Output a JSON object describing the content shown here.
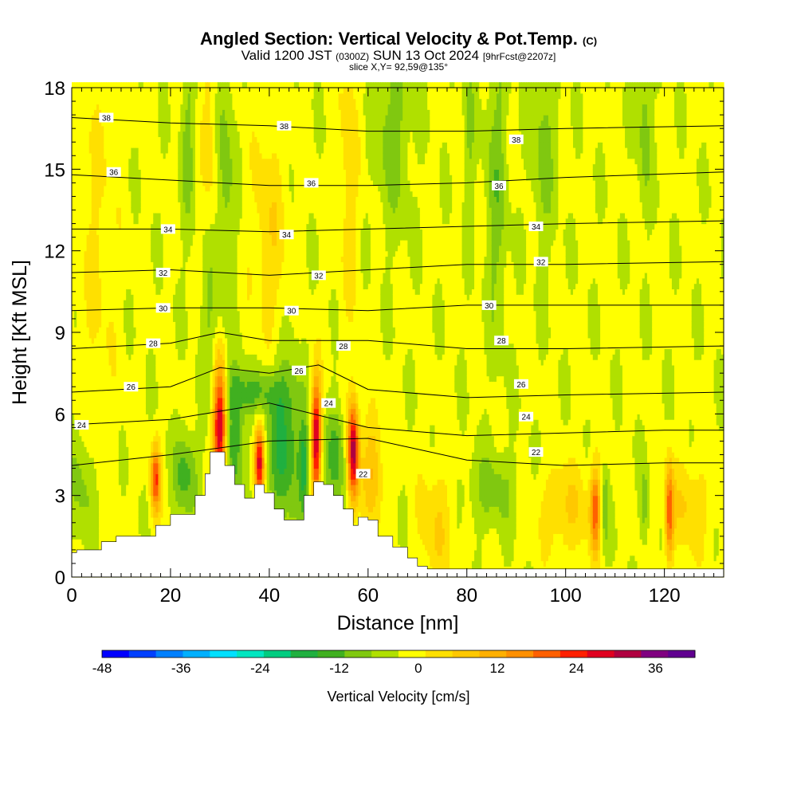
{
  "header": {
    "title": "Angled Section: Vertical Velocity & Pot.Temp.",
    "title_mark": "(C)",
    "valid_prefix": "Valid 1200 JST",
    "valid_utc": "(0300Z)",
    "valid_date": "SUN 13 Oct 2024",
    "forecast": "[9hrFcst@2207z]",
    "slice": "slice X,Y= 92,59@135°"
  },
  "chart_data": {
    "type": "heatmap",
    "xlabel": "Distance [nm]",
    "ylabel": "Height [Kft MSL]",
    "xlim": [
      0,
      132
    ],
    "ylim": [
      0,
      18
    ],
    "x_ticks": [
      0,
      20,
      40,
      60,
      80,
      100,
      120
    ],
    "y_ticks": [
      0,
      3,
      6,
      9,
      12,
      15,
      18
    ],
    "terrain_kft": [
      [
        0,
        0.9
      ],
      [
        1,
        1
      ],
      [
        6,
        1.3
      ],
      [
        9,
        1.5
      ],
      [
        15,
        1.5
      ],
      [
        17,
        1.9
      ],
      [
        20,
        2.3
      ],
      [
        25,
        3
      ],
      [
        27,
        3.8
      ],
      [
        28,
        4.6
      ],
      [
        30,
        4.6
      ],
      [
        31,
        4.1
      ],
      [
        33,
        3.4
      ],
      [
        35,
        2.9
      ],
      [
        37,
        3.4
      ],
      [
        39,
        3.1
      ],
      [
        41,
        2.5
      ],
      [
        43,
        2.1
      ],
      [
        45,
        2.1
      ],
      [
        47,
        3
      ],
      [
        49,
        3.5
      ],
      [
        51,
        3.4
      ],
      [
        53,
        3
      ],
      [
        55,
        2.5
      ],
      [
        57,
        1.9
      ],
      [
        58,
        2.2
      ],
      [
        60,
        2.1
      ],
      [
        62,
        1.5
      ],
      [
        65,
        1.1
      ],
      [
        68,
        0.7
      ],
      [
        70,
        0.4
      ],
      [
        72,
        0.3
      ],
      [
        132,
        0.3
      ]
    ],
    "theta_levels_c": [
      22,
      24,
      26,
      28,
      30,
      32,
      34,
      36,
      38
    ],
    "theta_isolines": [
      {
        "level": 22,
        "x": [
          0,
          20,
          40,
          60,
          80,
          100,
          120,
          132
        ],
        "y": [
          4.1,
          4.5,
          5.0,
          5.1,
          4.3,
          4.1,
          4.2,
          4.2
        ]
      },
      {
        "level": 24,
        "x": [
          0,
          20,
          40,
          60,
          80,
          100,
          120,
          132
        ],
        "y": [
          5.6,
          5.8,
          6.4,
          5.5,
          5.2,
          5.3,
          5.4,
          5.4
        ]
      },
      {
        "level": 26,
        "x": [
          0,
          20,
          30,
          40,
          50,
          60,
          80,
          100,
          132
        ],
        "y": [
          6.8,
          7.0,
          7.7,
          7.5,
          7.8,
          6.9,
          6.6,
          6.7,
          6.8
        ]
      },
      {
        "level": 28,
        "x": [
          0,
          20,
          30,
          40,
          60,
          80,
          100,
          132
        ],
        "y": [
          8.4,
          8.6,
          9.0,
          8.7,
          8.7,
          8.4,
          8.4,
          8.5
        ]
      },
      {
        "level": 30,
        "x": [
          0,
          20,
          40,
          60,
          80,
          100,
          132
        ],
        "y": [
          9.8,
          9.9,
          9.9,
          9.8,
          10.0,
          10.0,
          10.0
        ]
      },
      {
        "level": 32,
        "x": [
          0,
          20,
          40,
          60,
          80,
          100,
          132
        ],
        "y": [
          11.2,
          11.3,
          11.1,
          11.3,
          11.5,
          11.5,
          11.6
        ]
      },
      {
        "level": 34,
        "x": [
          0,
          20,
          40,
          60,
          80,
          100,
          132
        ],
        "y": [
          12.8,
          12.8,
          12.7,
          12.8,
          12.9,
          13.0,
          13.1
        ]
      },
      {
        "level": 36,
        "x": [
          0,
          20,
          40,
          60,
          80,
          100,
          132
        ],
        "y": [
          14.8,
          14.6,
          14.4,
          14.4,
          14.5,
          14.7,
          14.9
        ]
      },
      {
        "level": 38,
        "x": [
          0,
          20,
          40,
          60,
          80,
          100,
          132
        ],
        "y": [
          16.9,
          16.7,
          16.6,
          16.4,
          16.4,
          16.5,
          16.6
        ]
      }
    ],
    "theta_labels": [
      {
        "text": "38",
        "x": 7,
        "y": 16.9
      },
      {
        "text": "38",
        "x": 43,
        "y": 16.6
      },
      {
        "text": "38",
        "x": 90,
        "y": 16.1
      },
      {
        "text": "36",
        "x": 8.5,
        "y": 14.9
      },
      {
        "text": "36",
        "x": 48.5,
        "y": 14.5
      },
      {
        "text": "36",
        "x": 86.5,
        "y": 14.4
      },
      {
        "text": "34",
        "x": 19.5,
        "y": 12.8
      },
      {
        "text": "34",
        "x": 43.5,
        "y": 12.6
      },
      {
        "text": "34",
        "x": 94,
        "y": 12.9
      },
      {
        "text": "32",
        "x": 18.5,
        "y": 11.2
      },
      {
        "text": "32",
        "x": 50,
        "y": 11.1
      },
      {
        "text": "32",
        "x": 95,
        "y": 11.6
      },
      {
        "text": "30",
        "x": 18.5,
        "y": 9.9
      },
      {
        "text": "30",
        "x": 44.5,
        "y": 9.8
      },
      {
        "text": "30",
        "x": 84.5,
        "y": 10.0
      },
      {
        "text": "28",
        "x": 16.5,
        "y": 8.6
      },
      {
        "text": "28",
        "x": 55,
        "y": 8.5
      },
      {
        "text": "28",
        "x": 87,
        "y": 8.7
      },
      {
        "text": "26",
        "x": 12,
        "y": 7.0
      },
      {
        "text": "26",
        "x": 46,
        "y": 7.6
      },
      {
        "text": "26",
        "x": 91,
        "y": 7.1
      },
      {
        "text": "24",
        "x": 2,
        "y": 5.6
      },
      {
        "text": "24",
        "x": 52,
        "y": 6.4
      },
      {
        "text": "24",
        "x": 92,
        "y": 5.9
      },
      {
        "text": "22",
        "x": 94,
        "y": 4.6
      },
      {
        "text": "22",
        "x": 59,
        "y": 3.8
      }
    ],
    "colorbar": {
      "label": "Vertical Velocity [cm/s]",
      "tick_labels": [
        "-48",
        "-36",
        "-24",
        "-12",
        "0",
        "12",
        "24",
        "36"
      ],
      "tick_values": [
        -48,
        -36,
        -24,
        -12,
        0,
        12,
        24,
        36
      ],
      "min": -48,
      "max": 42,
      "step": 4.5,
      "colors": [
        "#0000ff",
        "#0040ff",
        "#0080ff",
        "#00b0ff",
        "#00e0ff",
        "#00e6c0",
        "#00cc80",
        "#20b040",
        "#40b020",
        "#80c810",
        "#b0e000",
        "#ffff00",
        "#ffe000",
        "#ffc800",
        "#ffb000",
        "#ff9000",
        "#ff6000",
        "#ff2000",
        "#e00020",
        "#b00040",
        "#800080",
        "#600090"
      ]
    },
    "velocity_features": [
      {
        "x": 30,
        "y": 5.6,
        "sx": 1.0,
        "sy": 1.6,
        "v": 38
      },
      {
        "x": 38,
        "y": 4.3,
        "sx": 0.7,
        "sy": 1.0,
        "v": 34
      },
      {
        "x": 49.5,
        "y": 5.2,
        "sx": 0.7,
        "sy": 1.5,
        "v": 36
      },
      {
        "x": 57,
        "y": 4.6,
        "sx": 0.8,
        "sy": 1.3,
        "v": 38
      },
      {
        "x": 17,
        "y": 3.6,
        "sx": 0.7,
        "sy": 0.9,
        "v": 26
      },
      {
        "x": 106,
        "y": 2.5,
        "sx": 0.7,
        "sy": 1.1,
        "v": 22
      },
      {
        "x": 121,
        "y": 2.4,
        "sx": 0.6,
        "sy": 1.2,
        "v": 24
      },
      {
        "x": 33,
        "y": 5.2,
        "sx": 1.4,
        "sy": 1.7,
        "v": -14
      },
      {
        "x": 43,
        "y": 5.0,
        "sx": 2.5,
        "sy": 2.0,
        "v": -16
      },
      {
        "x": 47,
        "y": 4.0,
        "sx": 0.7,
        "sy": 1.2,
        "v": -14
      },
      {
        "x": 53.5,
        "y": 4.5,
        "sx": 1.5,
        "sy": 1.3,
        "v": -12
      },
      {
        "x": 23,
        "y": 3.8,
        "sx": 1.7,
        "sy": 1.1,
        "v": -12
      },
      {
        "x": 37,
        "y": 6.8,
        "sx": 4,
        "sy": 0.6,
        "v": -10
      },
      {
        "x": 2,
        "y": 3.3,
        "sx": 2,
        "sy": 1.6,
        "v": -7
      },
      {
        "x": 108,
        "y": 2.6,
        "sx": 0.5,
        "sy": 1.0,
        "v": -10
      },
      {
        "x": 116,
        "y": 2.6,
        "sx": 0.6,
        "sy": 1.0,
        "v": -8
      },
      {
        "x": 85,
        "y": 3.2,
        "sx": 4,
        "sy": 1.0,
        "v": -7
      },
      {
        "x": 28,
        "y": 9.5,
        "sx": 1.2,
        "sy": 2.5,
        "v": -7
      },
      {
        "x": 31,
        "y": 14.5,
        "sx": 1.3,
        "sy": 3.5,
        "v": -8
      },
      {
        "x": 23.5,
        "y": 16.0,
        "sx": 1.0,
        "sy": 2.5,
        "v": -7
      },
      {
        "x": 65,
        "y": 16.5,
        "sx": 2.5,
        "sy": 2.5,
        "v": -8
      },
      {
        "x": 86,
        "y": 14.5,
        "sx": 1.5,
        "sy": 4.0,
        "v": -8
      },
      {
        "x": 95.5,
        "y": 16.0,
        "sx": 1.8,
        "sy": 2.8,
        "v": -7
      },
      {
        "x": 116,
        "y": 16.8,
        "sx": 1.0,
        "sy": 2.2,
        "v": -8
      },
      {
        "x": 80.5,
        "y": 16.5,
        "sx": 0.8,
        "sy": 2.5,
        "v": -6
      },
      {
        "x": 40,
        "y": 12.5,
        "sx": 2.5,
        "sy": 3,
        "v": 7
      },
      {
        "x": 56,
        "y": 15.0,
        "sx": 1.5,
        "sy": 4,
        "v": 6
      },
      {
        "x": 5,
        "y": 12.0,
        "sx": 3,
        "sy": 6,
        "v": 4
      },
      {
        "x": 28,
        "y": 16.0,
        "sx": 1.2,
        "sy": 3.5,
        "v": 6
      },
      {
        "x": 61,
        "y": 4.0,
        "sx": 1.5,
        "sy": 1.5,
        "v": 12
      },
      {
        "x": 74,
        "y": 2.0,
        "sx": 2.5,
        "sy": 1.5,
        "v": 8
      },
      {
        "x": 100,
        "y": 2.5,
        "sx": 4,
        "sy": 1.2,
        "v": 8
      },
      {
        "x": 125,
        "y": 2.6,
        "sx": 3,
        "sy": 1.2,
        "v": 8
      }
    ]
  }
}
